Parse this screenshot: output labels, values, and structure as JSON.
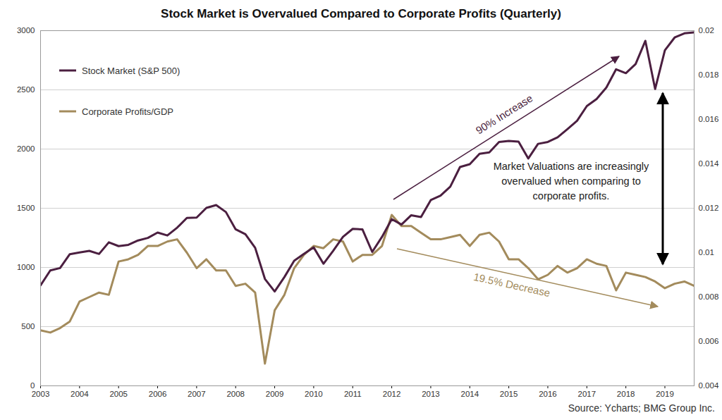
{
  "chart_data": {
    "type": "line",
    "title": "Stock Market is Overvalued Compared to Corporate Profits (Quarterly)",
    "caption": "Source: Ycharts; BMG Group Inc.",
    "annotations": [
      "90% Increase",
      "19.5% Decrease",
      "Market Valuations are increasingly overvalued when comparing to corporate profits."
    ],
    "x": [
      2003,
      2003.25,
      2003.5,
      2003.75,
      2004,
      2004.25,
      2004.5,
      2004.75,
      2005,
      2005.25,
      2005.5,
      2005.75,
      2006,
      2006.25,
      2006.5,
      2006.75,
      2007,
      2007.25,
      2007.5,
      2007.75,
      2008,
      2008.25,
      2008.5,
      2008.75,
      2009,
      2009.25,
      2009.5,
      2009.75,
      2010,
      2010.25,
      2010.5,
      2010.75,
      2011,
      2011.25,
      2011.5,
      2011.75,
      2012,
      2012.25,
      2012.5,
      2012.75,
      2013,
      2013.25,
      2013.5,
      2013.75,
      2014,
      2014.25,
      2014.5,
      2014.75,
      2015,
      2015.25,
      2015.5,
      2015.75,
      2016,
      2016.25,
      2016.5,
      2016.75,
      2017,
      2017.25,
      2017.5,
      2017.75,
      2018,
      2018.25,
      2018.5,
      2018.75,
      2019,
      2019.25,
      2019.5,
      2019.75
    ],
    "xlim": [
      2003,
      2019.75
    ],
    "xticks": [
      2003,
      2004,
      2005,
      2006,
      2007,
      2008,
      2009,
      2010,
      2011,
      2012,
      2013,
      2014,
      2015,
      2016,
      2017,
      2018,
      2019
    ],
    "ylim": [
      0,
      3000
    ],
    "yticks": [
      0,
      500,
      1000,
      1500,
      2000,
      2500,
      3000
    ],
    "y2lim": [
      0.004,
      0.02
    ],
    "y2ticks": [
      0.004,
      0.006,
      0.008,
      0.01,
      0.012,
      0.014,
      0.016,
      0.018,
      0.02
    ],
    "grid": true,
    "legend": "top-left",
    "series": [
      {
        "name": "Stock Market (S&P 500)",
        "color": "#4b1f40",
        "values": [
          848,
          975,
          995,
          1112,
          1126,
          1140,
          1114,
          1212,
          1180,
          1191,
          1228,
          1249,
          1295,
          1270,
          1336,
          1418,
          1421,
          1503,
          1527,
          1468,
          1322,
          1280,
          1166,
          903,
          797,
          919,
          1057,
          1115,
          1169,
          1031,
          1141,
          1258,
          1326,
          1321,
          1131,
          1258,
          1408,
          1362,
          1441,
          1426,
          1569,
          1606,
          1682,
          1848,
          1872,
          1960,
          1972,
          2059,
          2068,
          2063,
          1920,
          2044,
          2060,
          2099,
          2168,
          2239,
          2363,
          2423,
          2519,
          2674,
          2641,
          2718,
          2914,
          2507,
          2834,
          2942,
          2977,
          2985
        ]
      },
      {
        "name": "Corporate Profits/GDP",
        "color": "#a38b5c",
        "axis": "y2",
        "values": [
          0.0065,
          0.0064,
          0.0066,
          0.0069,
          0.0078,
          0.008,
          0.0082,
          0.0081,
          0.0096,
          0.0097,
          0.0099,
          0.0103,
          0.0103,
          0.0105,
          0.0106,
          0.01,
          0.0093,
          0.0097,
          0.0092,
          0.0092,
          0.0085,
          0.0086,
          0.0082,
          0.005,
          0.0074,
          0.0081,
          0.0093,
          0.0099,
          0.0103,
          0.0102,
          0.0106,
          0.0105,
          0.0096,
          0.0099,
          0.0099,
          0.0103,
          0.0117,
          0.0112,
          0.0112,
          0.0109,
          0.0106,
          0.0106,
          0.0107,
          0.0108,
          0.0103,
          0.0108,
          0.0109,
          0.0105,
          0.0097,
          0.0097,
          0.0093,
          0.0088,
          0.009,
          0.0094,
          0.0091,
          0.0093,
          0.0097,
          0.0095,
          0.0094,
          0.0083,
          0.0091,
          0.009,
          0.0089,
          0.0087,
          0.0084,
          0.0086,
          0.0087,
          0.0085
        ]
      }
    ]
  }
}
